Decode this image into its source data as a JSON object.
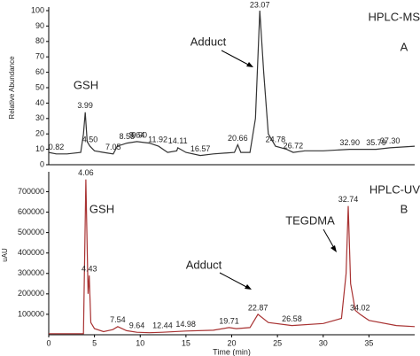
{
  "chart_data": [
    {
      "type": "line",
      "y_label": "Relative Abundance",
      "instrument": "HPLC-MS",
      "panel": "A",
      "annotations": [
        "GSH",
        "Adduct"
      ],
      "x": [
        0,
        0.82,
        2,
        3.5,
        3.8,
        3.99,
        4.2,
        4.5,
        5,
        6,
        7.05,
        7.5,
        8.55,
        9.64,
        11,
        12,
        13,
        14,
        14.11,
        15,
        16.57,
        18,
        20.3,
        20.66,
        21,
        22,
        22.6,
        23.07,
        23.5,
        24,
        24.78,
        26,
        26.72,
        28,
        30,
        32.9,
        35.79,
        37.3,
        40
      ],
      "values": [
        8,
        7,
        7,
        8,
        20,
        34,
        15,
        12,
        9,
        8,
        7,
        12,
        14,
        15,
        14,
        12,
        8,
        9,
        11,
        8,
        6,
        7,
        8,
        13,
        8,
        8,
        30,
        100,
        60,
        20,
        12,
        10,
        8,
        9,
        9,
        10,
        10,
        11,
        12
      ],
      "color": "#333333",
      "peaks": [
        {
          "time": 0.82,
          "label": "0.82",
          "y": 7
        },
        {
          "time": 3.99,
          "label": "3.99",
          "y": 34
        },
        {
          "time": 4.5,
          "label": "4.50",
          "y": 12
        },
        {
          "time": 7.05,
          "label": "7.05",
          "y": 7
        },
        {
          "time": 8.55,
          "label": "8.55",
          "y": 14
        },
        {
          "time": 9.64,
          "label": "9.64",
          "y": 15
        },
        {
          "time": 9.9,
          "label": "9.90",
          "y": 15
        },
        {
          "time": 11.92,
          "label": "11.92",
          "y": 12
        },
        {
          "time": 14.11,
          "label": "14.11",
          "y": 11
        },
        {
          "time": 16.57,
          "label": "16.57",
          "y": 6
        },
        {
          "time": 20.66,
          "label": "20.66",
          "y": 13
        },
        {
          "time": 23.07,
          "label": "23.07",
          "y": 100
        },
        {
          "time": 24.78,
          "label": "24.78",
          "y": 12
        },
        {
          "time": 26.72,
          "label": "26.72",
          "y": 8
        },
        {
          "time": 32.9,
          "label": "32.90",
          "y": 10
        },
        {
          "time": 35.79,
          "label": "35.79",
          "y": 10
        },
        {
          "time": 37.3,
          "label": "37.30",
          "y": 11
        }
      ],
      "xlim": [
        0,
        40
      ],
      "ylim": [
        0,
        100
      ],
      "yticks": [
        0,
        10,
        20,
        30,
        40,
        50,
        60,
        70,
        80,
        90,
        100
      ]
    },
    {
      "type": "line",
      "y_label": "uAU",
      "x_label": "Time (min)",
      "instrument": "HPLC-UV",
      "panel": "B",
      "annotations": [
        "GSH",
        "Adduct",
        "TEGDMA"
      ],
      "x": [
        0,
        3.8,
        4.06,
        4.3,
        4.43,
        4.6,
        5,
        6,
        7,
        7.54,
        8.5,
        9.64,
        11,
        12.44,
        14.98,
        18,
        19.71,
        20.5,
        22,
        22.87,
        24,
        26.58,
        30,
        32,
        32.5,
        32.74,
        33,
        33.5,
        34.02,
        35,
        38,
        40
      ],
      "values": [
        5000,
        5000,
        760000,
        200000,
        290000,
        60000,
        30000,
        15000,
        25000,
        40000,
        20000,
        12000,
        10000,
        12000,
        18000,
        22000,
        35000,
        30000,
        35000,
        100000,
        60000,
        45000,
        55000,
        80000,
        300000,
        630000,
        250000,
        120000,
        100000,
        70000,
        45000,
        40000
      ],
      "color": "#a83232",
      "peaks": [
        {
          "time": 4.06,
          "label": "4.06",
          "y": 760000
        },
        {
          "time": 4.43,
          "label": "4.43",
          "y": 290000
        },
        {
          "time": 7.54,
          "label": "7.54",
          "y": 40000
        },
        {
          "time": 9.64,
          "label": "9.64",
          "y": 12000
        },
        {
          "time": 12.44,
          "label": "12.44",
          "y": 12000
        },
        {
          "time": 14.98,
          "label": "14.98",
          "y": 18000
        },
        {
          "time": 19.71,
          "label": "19.71",
          "y": 35000
        },
        {
          "time": 22.87,
          "label": "22.87",
          "y": 100000
        },
        {
          "time": 26.58,
          "label": "26.58",
          "y": 45000
        },
        {
          "time": 32.74,
          "label": "32.74",
          "y": 630000
        },
        {
          "time": 34.02,
          "label": "34.02",
          "y": 100000
        }
      ],
      "xlim": [
        0,
        40
      ],
      "ylim": [
        0,
        780000
      ],
      "yticks": [
        100000,
        200000,
        300000,
        400000,
        500000,
        600000,
        700000
      ],
      "xticks": [
        0,
        5,
        10,
        15,
        20,
        25,
        30,
        35
      ]
    }
  ]
}
